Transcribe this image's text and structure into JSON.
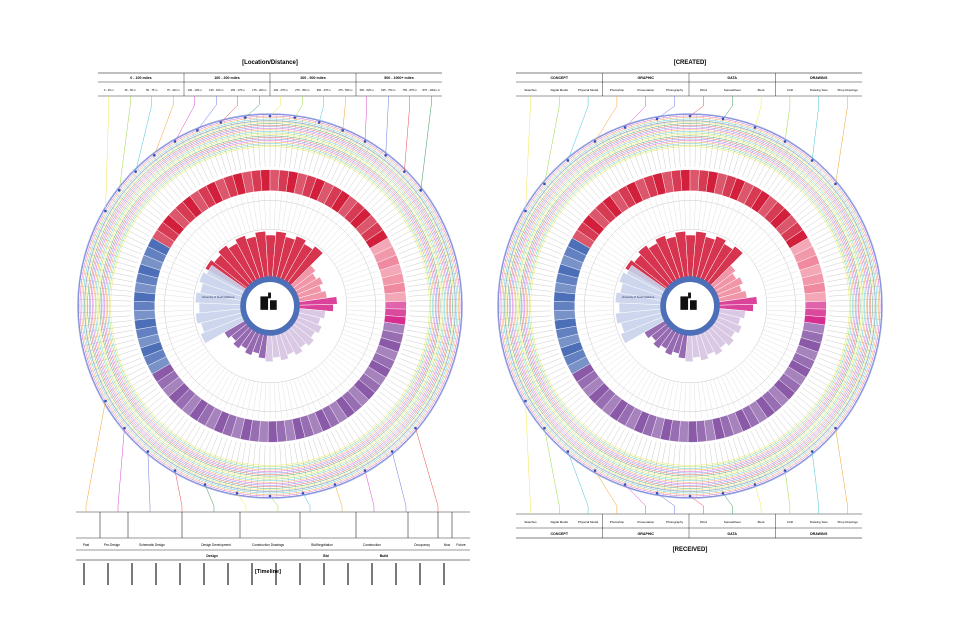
{
  "left": {
    "title": "[Location/Distance]",
    "groups": [
      "0 - 100 miles",
      "100 - 200 miles",
      "200 - 500 miles",
      "500 - 1000+ miles"
    ],
    "ranges": [
      "0 - 25 m",
      "25 - 50 m",
      "50 - 75 m",
      "75 - 100 m",
      "100 - 125 m",
      "125 - 150 m",
      "150 - 175 m",
      "175 - 200 m",
      "200 - 275 m",
      "275 - 350 m",
      "350 - 475 m",
      "475 - 500 m",
      "500 - 625 m",
      "625 - 750 m",
      "750 - 875 m",
      "875 - 1000+ m"
    ],
    "center_label": "University of South Alabama",
    "timeline": {
      "title": "[Timeline]",
      "phases": [
        "Past",
        "Pre-Design",
        "Schematic Design",
        "Design Development",
        "Construction Drawings",
        "Bid/Negotiation",
        "Construction",
        "Occupancy",
        "Now",
        "Future"
      ],
      "groups": [
        "Design",
        "Bid",
        "Build"
      ]
    }
  },
  "right": {
    "title_top": "[CREATED]",
    "title_bottom": "[RECEIVED]",
    "groups": [
      "CONCEPT",
      "GRAPHIC",
      "DATA",
      "DRAWING"
    ],
    "items": [
      "Sketches",
      "Digital Model",
      "Physical Model",
      "Photoshop",
      "Presentation",
      "Photography",
      "Word",
      "Spreadsheet",
      "Book",
      "CAD",
      "Drawing Sets",
      "Shop Drawings"
    ]
  },
  "colors": {
    "red": "#d21f3c",
    "pink": "#f08aa0",
    "blue": "#4d6fb8",
    "lightblue": "#c8d2ec",
    "purple": "#8a5aa8",
    "lightpurple": "#d6c4e2",
    "magenta": "#d62f8f",
    "ring": [
      "#f2e64a",
      "#9ad94a",
      "#4ac6d6",
      "#f5a030",
      "#d94ad0",
      "#6a7be0",
      "#e84a4a",
      "#3a9a5a"
    ]
  }
}
